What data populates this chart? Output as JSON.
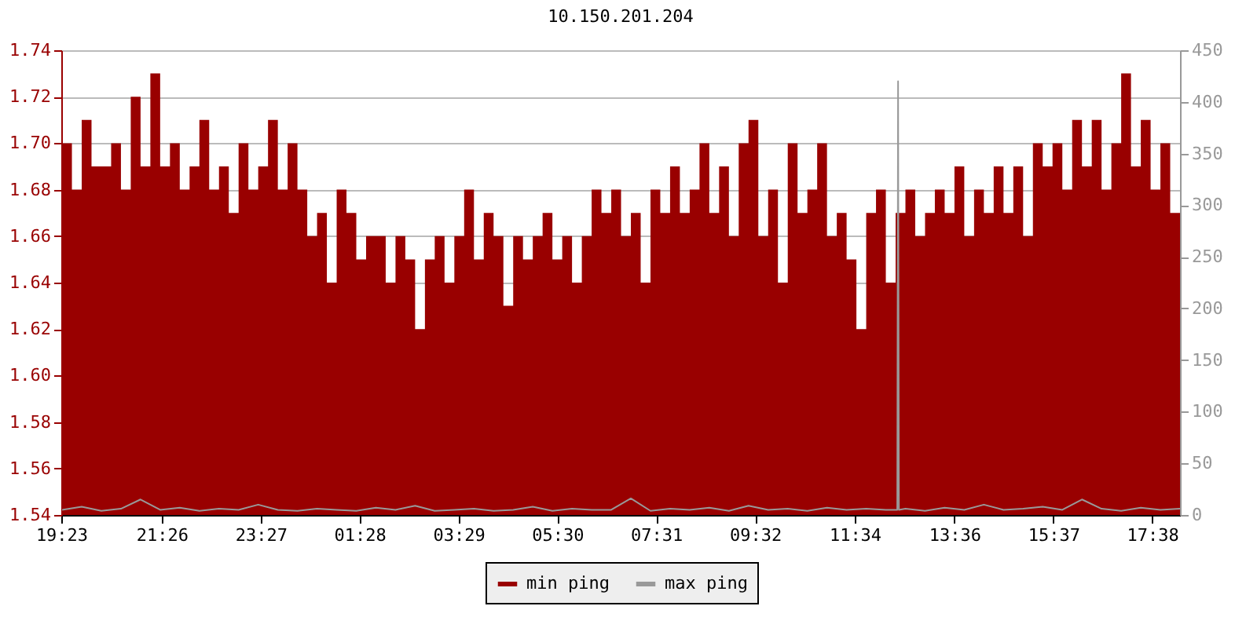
{
  "chart_data": {
    "type": "area",
    "title": "10.150.201.204",
    "x": [
      "--01-01T19:24",
      "--01-01T19:36",
      "--01-01T19:48",
      "--01-01T20:00",
      "--01-01T20:12",
      "--01-01T20:24",
      "--01-01T20:36",
      "--01-01T20:48",
      "--01-01T21:00",
      "--01-01T21:12",
      "--01-01T21:24",
      "--01-01T21:36",
      "--01-01T21:48",
      "--01-01T22:00",
      "--01-01T22:12",
      "--01-01T22:24",
      "--01-01T22:36",
      "--01-01T22:48",
      "--01-01T23:00",
      "--01-01T23:12",
      "--01-01T23:24",
      "--01-01T23:36",
      "--01-01T23:48",
      "--01-02T00:00",
      "--01-02T00:12",
      "--01-02T00:24",
      "--01-02T00:36",
      "--01-02T00:48",
      "--01-02T01:00",
      "--01-02T01:12",
      "--01-02T01:24",
      "--01-02T01:36",
      "--01-02T01:48",
      "--01-02T02:00",
      "--01-02T02:12",
      "--01-02T02:24",
      "--01-02T02:36",
      "--01-02T02:48",
      "--01-02T03:00",
      "--01-02T03:12",
      "--01-02T03:24",
      "--01-02T03:36",
      "--01-02T03:48",
      "--01-02T04:00",
      "--01-02T04:12",
      "--01-02T04:24",
      "--01-02T04:36",
      "--01-02T04:48",
      "--01-02T05:00",
      "--01-02T05:12",
      "--01-02T05:24",
      "--01-02T05:36",
      "--01-02T05:48",
      "--01-02T06:00",
      "--01-02T06:12",
      "--01-02T06:24",
      "--01-02T06:36",
      "--01-02T06:48",
      "--01-02T07:00",
      "--01-02T07:12",
      "--01-02T07:24",
      "--01-02T07:36",
      "--01-02T07:48",
      "--01-02T08:00",
      "--01-02T08:12",
      "--01-02T08:24",
      "--01-02T08:36",
      "--01-02T08:48",
      "--01-02T09:00",
      "--01-02T09:12",
      "--01-02T09:24",
      "--01-02T09:36",
      "--01-02T09:48",
      "--01-02T10:00",
      "--01-02T10:12",
      "--01-02T10:24",
      "--01-02T10:36",
      "--01-02T10:48",
      "--01-02T11:00",
      "--01-02T11:12",
      "--01-02T11:24",
      "--01-02T11:36",
      "--01-02T11:48",
      "--01-02T12:00",
      "--01-02T12:12",
      "--01-02T12:24",
      "--01-02T12:36",
      "--01-02T12:48",
      "--01-02T13:00",
      "--01-02T13:12",
      "--01-02T13:24",
      "--01-02T13:36",
      "--01-02T13:48",
      "--01-02T14:00",
      "--01-02T14:12",
      "--01-02T14:24",
      "--01-02T14:36",
      "--01-02T14:48",
      "--01-02T15:00",
      "--01-02T15:12",
      "--01-02T15:24",
      "--01-02T15:36",
      "--01-02T15:48",
      "--01-02T16:00",
      "--01-02T16:12",
      "--01-02T16:24",
      "--01-02T16:36",
      "--01-02T16:48",
      "--01-02T17:00",
      "--01-02T17:12",
      "--01-02T17:24",
      "--01-02T17:36",
      "--01-02T17:48",
      "--01-02T18:00",
      "--01-02T18:12"
    ],
    "series": [
      {
        "name": "min ping",
        "color": "#990000",
        "values": [
          1.7,
          1.68,
          1.71,
          1.69,
          1.69,
          1.7,
          1.68,
          1.72,
          1.69,
          1.73,
          1.69,
          1.7,
          1.68,
          1.69,
          1.71,
          1.68,
          1.69,
          1.67,
          1.7,
          1.68,
          1.69,
          1.71,
          1.68,
          1.7,
          1.68,
          1.66,
          1.67,
          1.64,
          1.68,
          1.67,
          1.65,
          1.66,
          1.66,
          1.64,
          1.66,
          1.65,
          1.62,
          1.65,
          1.66,
          1.64,
          1.66,
          1.68,
          1.65,
          1.67,
          1.66,
          1.63,
          1.66,
          1.65,
          1.66,
          1.67,
          1.65,
          1.66,
          1.64,
          1.66,
          1.68,
          1.67,
          1.68,
          1.66,
          1.67,
          1.64,
          1.68,
          1.67,
          1.69,
          1.67,
          1.68,
          1.7,
          1.67,
          1.69,
          1.66,
          1.7,
          1.71,
          1.66,
          1.68,
          1.64,
          1.7,
          1.67,
          1.68,
          1.7,
          1.66,
          1.67,
          1.65,
          1.62,
          1.67,
          1.68,
          1.64,
          1.67,
          1.68,
          1.66,
          1.67,
          1.68,
          1.67,
          1.69,
          1.66,
          1.68,
          1.67,
          1.69,
          1.67,
          1.69,
          1.66,
          1.7,
          1.69,
          1.7,
          1.68,
          1.71,
          1.69,
          1.71,
          1.68,
          1.7,
          1.73,
          1.69,
          1.71,
          1.68,
          1.7,
          1.67,
          1.69
        ]
      },
      {
        "name": "max ping",
        "color": "#999999",
        "type": "line",
        "axis": "y2",
        "x": [
          "--01-01T19:24",
          "--01-01T19:48",
          "--01-01T20:12",
          "--01-01T20:36",
          "--01-01T21:00",
          "--01-01T21:24",
          "--01-01T21:48",
          "--01-01T22:12",
          "--01-01T22:36",
          "--01-01T23:00",
          "--01-01T23:24",
          "--01-01T23:48",
          "--01-02T00:12",
          "--01-02T00:36",
          "--01-02T01:00",
          "--01-02T01:24",
          "--01-02T01:48",
          "--01-02T02:12",
          "--01-02T02:36",
          "--01-02T03:00",
          "--01-02T03:24",
          "--01-02T03:48",
          "--01-02T04:12",
          "--01-02T04:36",
          "--01-02T05:00",
          "--01-02T05:24",
          "--01-02T05:48",
          "--01-02T06:12",
          "--01-02T06:36",
          "--01-02T07:00",
          "--01-02T07:24",
          "--01-02T07:48",
          "--01-02T08:12",
          "--01-02T08:36",
          "--01-02T09:00",
          "--01-02T09:24",
          "--01-02T09:48",
          "--01-02T10:12",
          "--01-02T10:36",
          "--01-02T11:00",
          "--01-02T11:24",
          "--01-02T11:48",
          "--01-02T12:12",
          "--01-02T12:26",
          "--01-02T12:27",
          "--01-02T12:28",
          "--01-02T12:36",
          "--01-02T13:00",
          "--01-02T13:24",
          "--01-02T13:48",
          "--01-02T14:12",
          "--01-02T14:36",
          "--01-02T15:00",
          "--01-02T15:24",
          "--01-02T15:48",
          "--01-02T16:12",
          "--01-02T16:36",
          "--01-02T17:00",
          "--01-02T17:24",
          "--01-02T17:48",
          "--01-02T18:12"
        ],
        "values": [
          5,
          8,
          4,
          6,
          15,
          5,
          7,
          4,
          6,
          5,
          10,
          5,
          4,
          6,
          5,
          4,
          7,
          5,
          9,
          4,
          5,
          6,
          4,
          5,
          8,
          4,
          6,
          5,
          5,
          16,
          4,
          6,
          5,
          7,
          4,
          9,
          5,
          6,
          4,
          7,
          5,
          6,
          5,
          5,
          420,
          5,
          6,
          4,
          7,
          5,
          10,
          5,
          6,
          8,
          5,
          15,
          6,
          4,
          7,
          5,
          6
        ]
      }
    ],
    "xlim": [
      "--01-01T19:23",
      "--01-02T18:12"
    ],
    "xticks": [
      {
        "value": "--01-01T19:23",
        "label": "19:23"
      },
      {
        "value": "--01-01T21:26",
        "label": "21:26"
      },
      {
        "value": "--01-01T23:27",
        "label": "23:27"
      },
      {
        "value": "--01-02T01:28",
        "label": "01:28"
      },
      {
        "value": "--01-02T03:29",
        "label": "03:29"
      },
      {
        "value": "--01-02T05:30",
        "label": "05:30"
      },
      {
        "value": "--01-02T07:31",
        "label": "07:31"
      },
      {
        "value": "--01-02T09:32",
        "label": "09:32"
      },
      {
        "value": "--01-02T11:34",
        "label": "11:34"
      },
      {
        "value": "--01-02T13:36",
        "label": "13:36"
      },
      {
        "value": "--01-02T15:37",
        "label": "15:37"
      },
      {
        "value": "--01-02T17:38",
        "label": "17:38"
      }
    ],
    "ylim": [
      1.54,
      1.74
    ],
    "yticks": [
      {
        "value": 1.54,
        "label": "1.54"
      },
      {
        "value": 1.56,
        "label": "1.56"
      },
      {
        "value": 1.58,
        "label": "1.58"
      },
      {
        "value": 1.6,
        "label": "1.60"
      },
      {
        "value": 1.62,
        "label": "1.62"
      },
      {
        "value": 1.64,
        "label": "1.64"
      },
      {
        "value": 1.66,
        "label": "1.66"
      },
      {
        "value": 1.68,
        "label": "1.68"
      },
      {
        "value": 1.7,
        "label": "1.70"
      },
      {
        "value": 1.72,
        "label": "1.72"
      },
      {
        "value": 1.74,
        "label": "1.74"
      }
    ],
    "y2lim": [
      0,
      450
    ],
    "y2ticks": [
      0,
      50,
      100,
      150,
      200,
      250,
      300,
      350,
      400,
      450
    ],
    "grid": "y",
    "legend": "bottom"
  }
}
